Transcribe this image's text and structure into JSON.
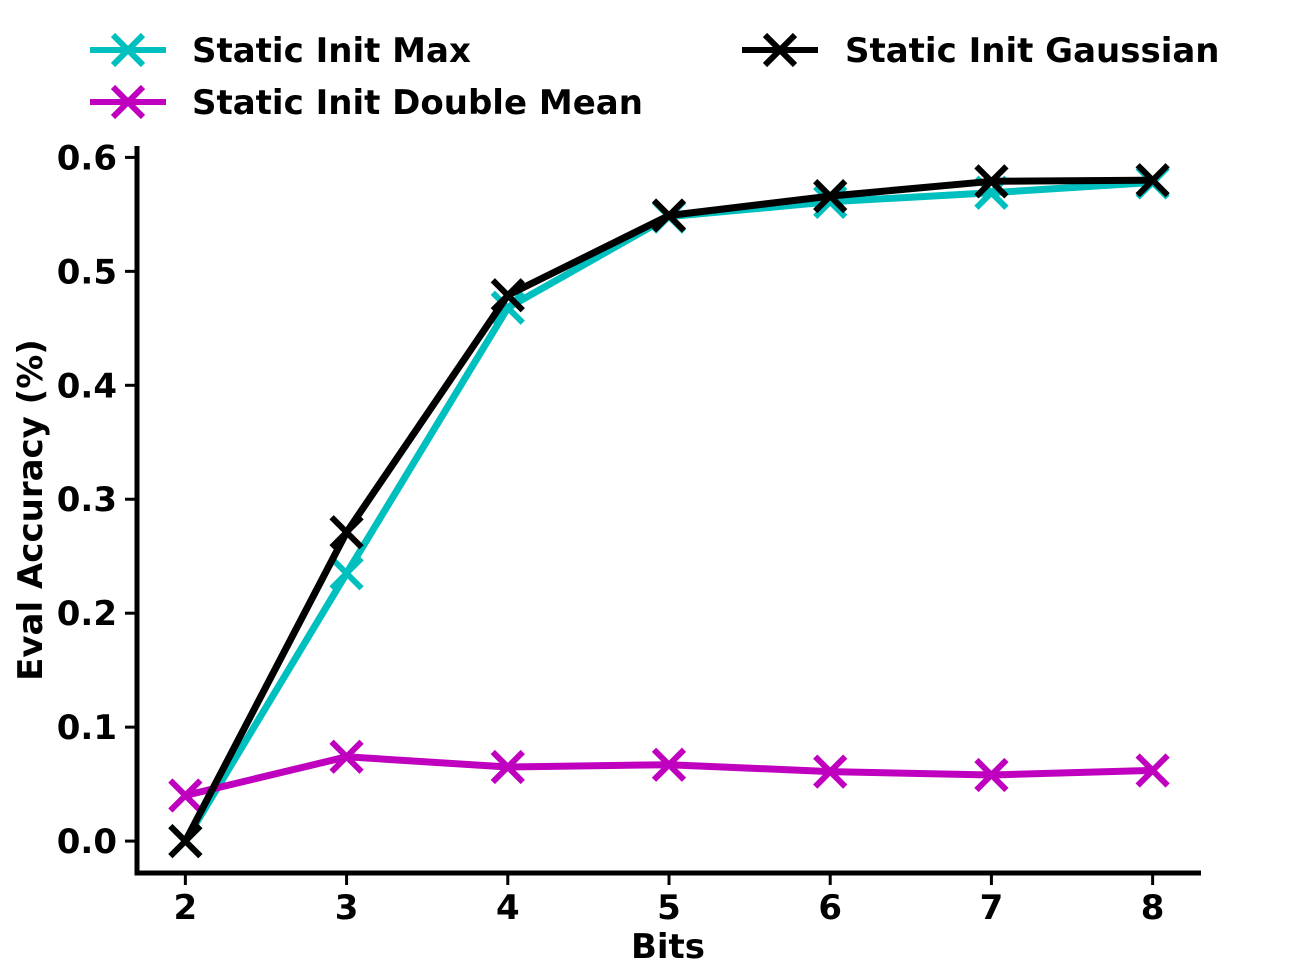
{
  "chart_data": {
    "type": "line",
    "xlabel": "Bits",
    "ylabel": "Eval Accuracy (%)",
    "x": [
      2,
      3,
      4,
      5,
      6,
      7,
      8
    ],
    "xticks": [
      "2",
      "3",
      "4",
      "5",
      "6",
      "7",
      "8"
    ],
    "yticks": [
      "0.0",
      "0.1",
      "0.2",
      "0.3",
      "0.4",
      "0.5",
      "0.6"
    ],
    "ylim": [
      -0.028,
      0.61
    ],
    "xlim": [
      1.7,
      8.3
    ],
    "grid": false,
    "legend_position": "top",
    "marker": "x",
    "series": [
      {
        "name": "Static Init Max",
        "color": "#00bfbf",
        "values": [
          0.0,
          0.235,
          0.468,
          0.548,
          0.561,
          0.569,
          0.578
        ]
      },
      {
        "name": "Static Init Double Mean",
        "color": "#bf00bf",
        "values": [
          0.04,
          0.074,
          0.065,
          0.067,
          0.061,
          0.058,
          0.062
        ]
      },
      {
        "name": "Static Init Gaussian",
        "color": "#000000",
        "values": [
          0.0,
          0.271,
          0.479,
          0.549,
          0.566,
          0.579,
          0.58
        ]
      }
    ]
  }
}
